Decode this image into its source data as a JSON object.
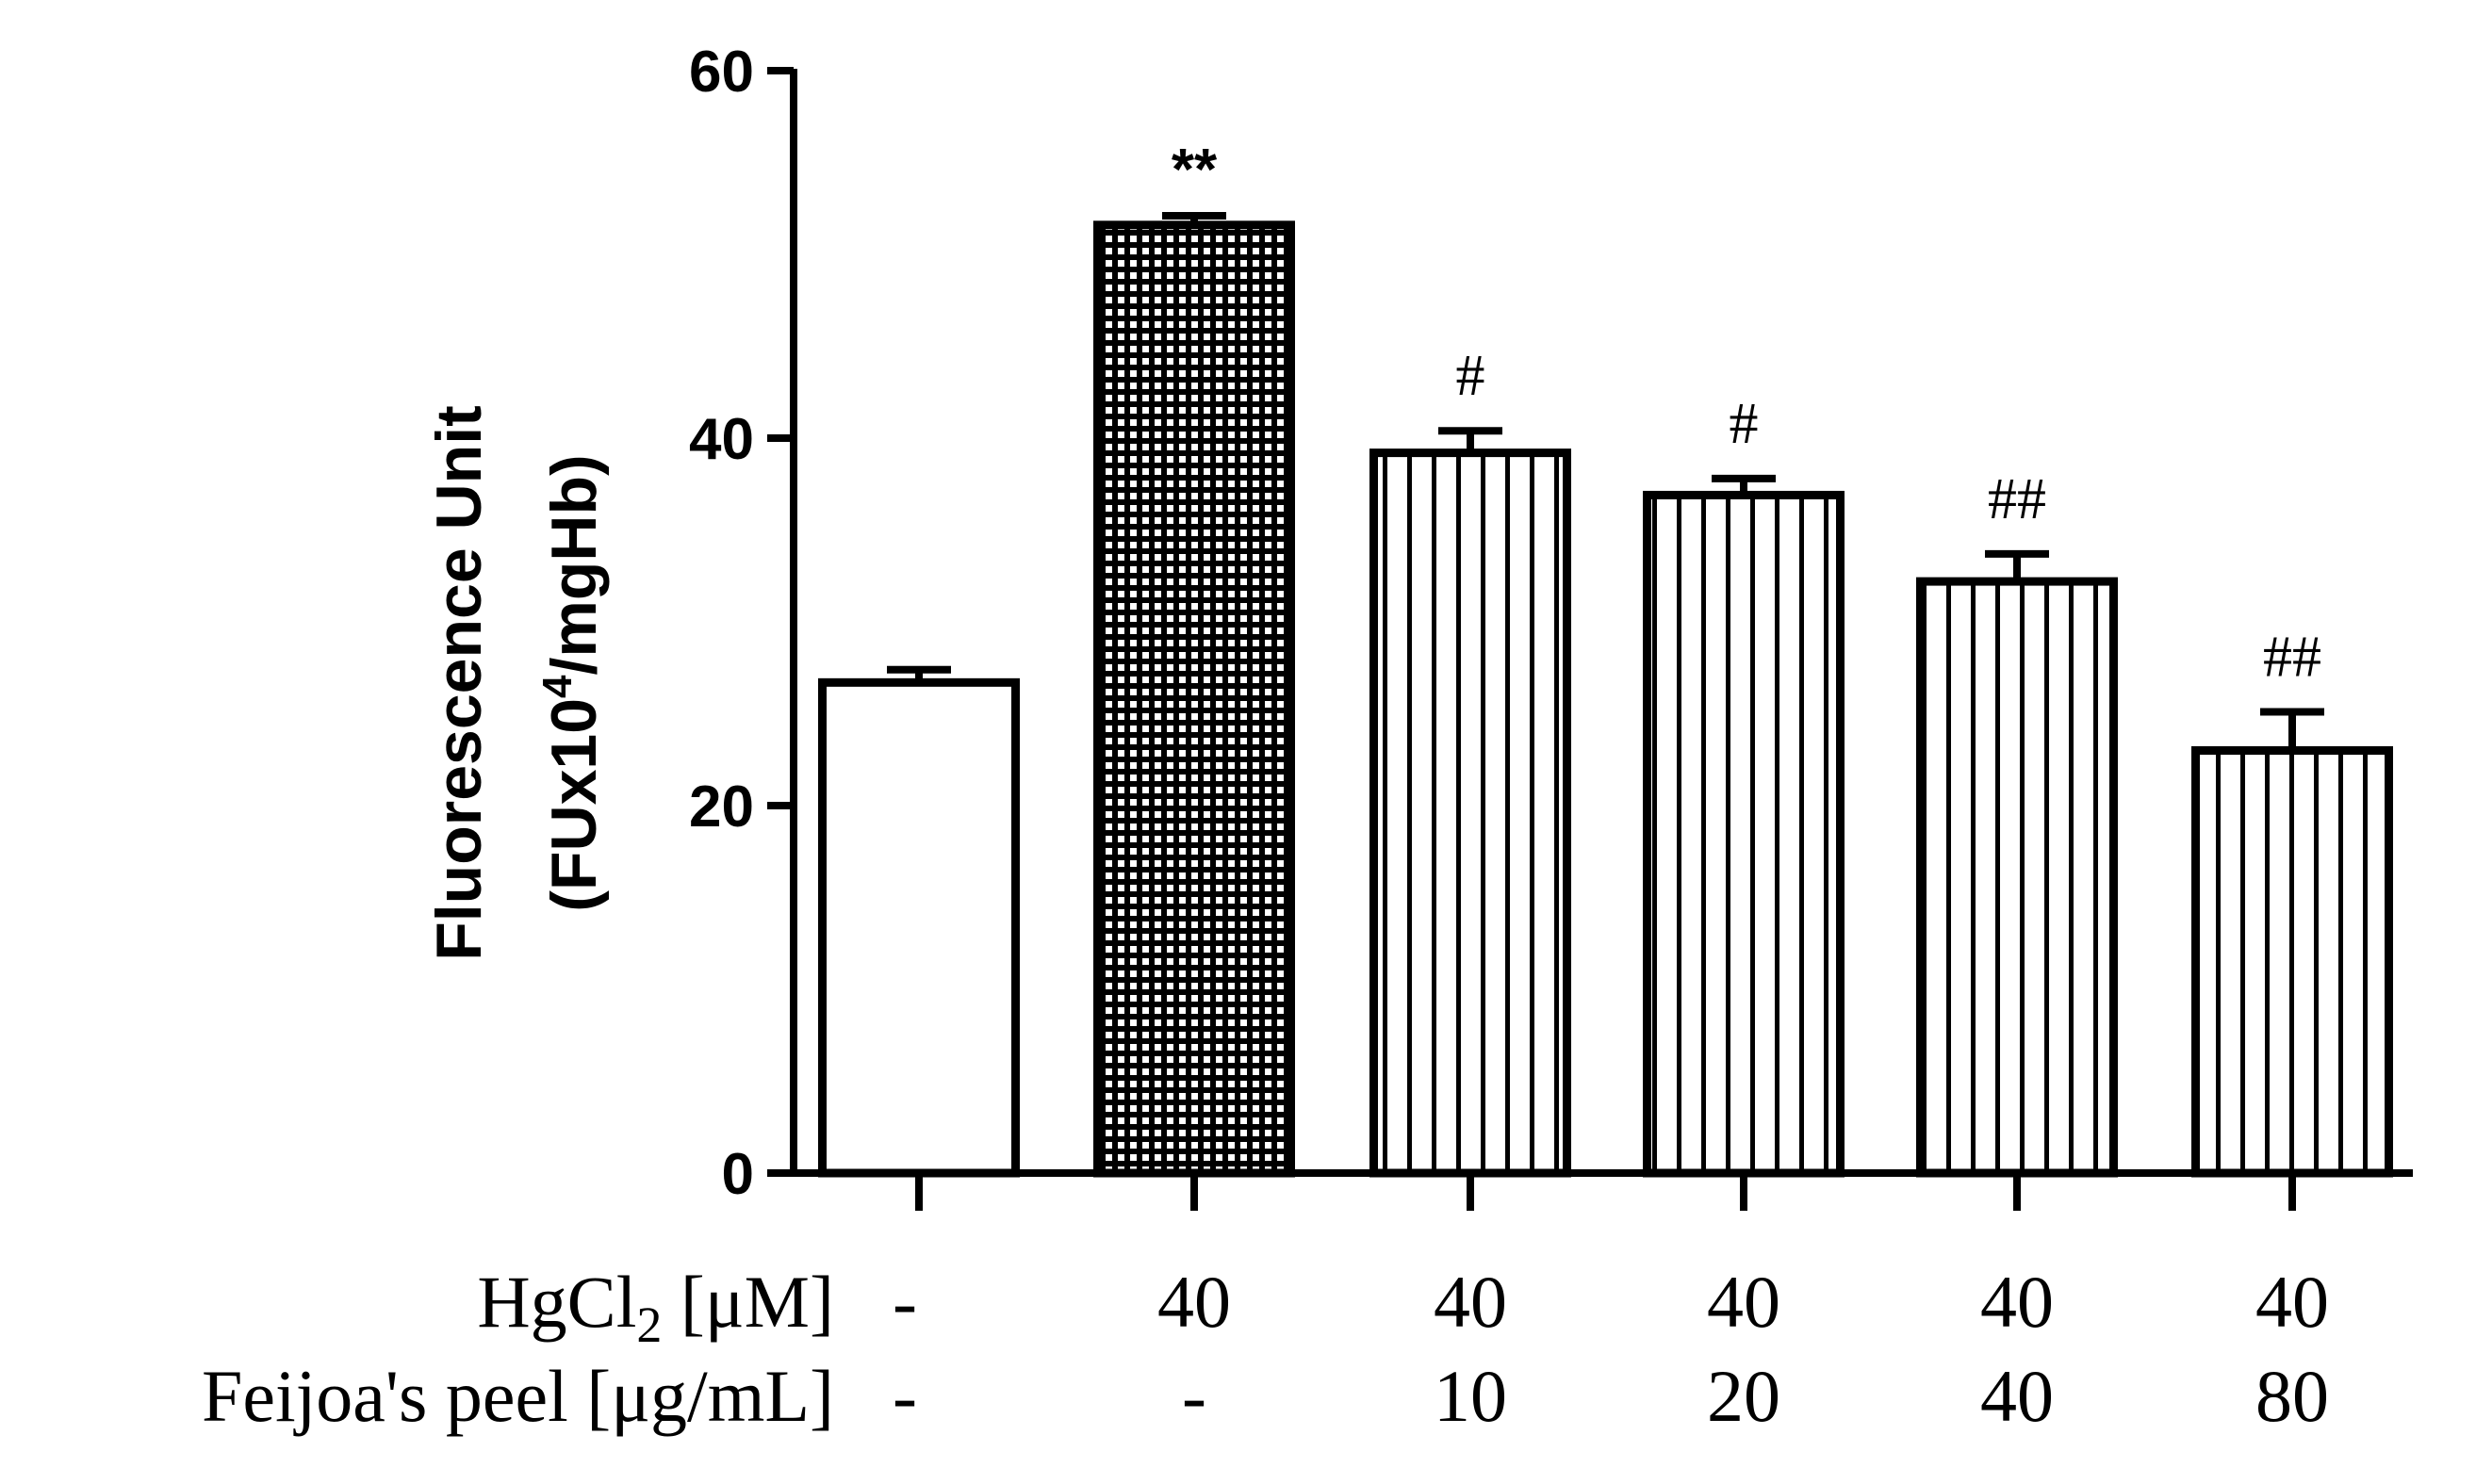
{
  "chart_data": {
    "type": "bar",
    "title": "",
    "ylabel_line1": "Fluorescence Unit",
    "ylabel_line2_prefix": "(FUx10",
    "ylabel_line2_sup": "4",
    "ylabel_line2_suffix": "/mgHb)",
    "ylim": [
      0,
      60
    ],
    "yticks": [
      "0",
      "20",
      "40",
      "60"
    ],
    "bars": [
      {
        "value": 26.7,
        "error": 0.7,
        "annotation": "",
        "pattern": "none"
      },
      {
        "value": 51.6,
        "error": 0.5,
        "annotation": "**",
        "pattern": "grid"
      },
      {
        "value": 39.2,
        "error": 1.2,
        "annotation": "#",
        "pattern": "vertical"
      },
      {
        "value": 36.9,
        "error": 0.9,
        "annotation": "#",
        "pattern": "vertical"
      },
      {
        "value": 32.2,
        "error": 1.5,
        "annotation": "##",
        "pattern": "vertical"
      },
      {
        "value": 23.0,
        "error": 2.1,
        "annotation": "##",
        "pattern": "vertical"
      }
    ],
    "rows": [
      {
        "label_main": "HgCl",
        "label_sub": "2",
        "label_rest": " [μM]",
        "values": [
          "-",
          "40",
          "40",
          "40",
          "40",
          "40"
        ]
      },
      {
        "label_main": "Feijoa's peel [μg/mL]",
        "label_sub": "",
        "label_rest": "",
        "values": [
          "-",
          "-",
          "10",
          "20",
          "40",
          "80"
        ]
      }
    ]
  }
}
